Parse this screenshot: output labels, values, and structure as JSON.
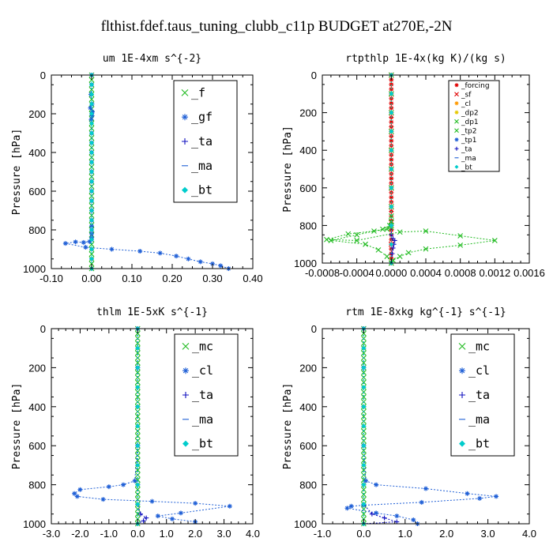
{
  "title": "flthist.fdef.taus_tuning_clubb_c11p  BUDGET at270E,-2N",
  "colors": {
    "red": "#e00000",
    "orange": "#ff9900",
    "yellow": "#e6c800",
    "green": "#22bb22",
    "blue": "#1f5fd6",
    "navy": "#1010c0",
    "cyan": "#00cccc"
  },
  "chart_data": [
    {
      "type": "line",
      "title": "um  1E-4xm s^{-2}",
      "ylabel": "Pressure [hPa]",
      "xlim": [
        -0.1,
        0.4
      ],
      "ylim": [
        0,
        1000
      ],
      "y_reversed": true,
      "xticks": [
        "-0.10",
        "0.00",
        "0.10",
        "0.20",
        "0.30",
        "0.40"
      ],
      "yticks": [
        "0",
        "200",
        "400",
        "600",
        "800",
        "1000"
      ],
      "legend_style": "big",
      "legend_entries": [
        "_f",
        "_gf",
        "_ta",
        "_ma",
        "_bt"
      ],
      "series": [
        {
          "name": "_f",
          "color": "green",
          "marker": "x",
          "x": [
            0,
            0,
            0,
            0,
            0,
            0,
            0,
            0,
            0,
            0,
            0,
            0,
            0,
            0,
            0,
            0,
            0,
            0,
            0,
            0,
            0,
            0,
            0,
            0,
            0,
            0,
            0,
            0,
            0,
            0,
            0,
            0,
            0,
            0,
            0,
            0,
            0,
            0,
            0,
            0,
            0
          ],
          "y": [
            0,
            25,
            50,
            75,
            100,
            125,
            150,
            175,
            200,
            225,
            250,
            275,
            300,
            325,
            350,
            375,
            400,
            425,
            450,
            475,
            500,
            525,
            550,
            575,
            600,
            625,
            650,
            675,
            700,
            725,
            750,
            775,
            800,
            825,
            850,
            875,
            900,
            925,
            950,
            975,
            1000
          ]
        },
        {
          "name": "_gf",
          "color": "blue",
          "marker": "star",
          "x": [
            0,
            0,
            -0.002,
            0.001,
            -0.003,
            0.002,
            0.001,
            -0.001,
            0,
            0,
            0,
            0,
            0,
            0,
            0,
            0,
            0,
            0,
            0,
            0,
            0,
            0,
            0,
            -0.005,
            -0.02,
            -0.04,
            -0.065,
            -0.015,
            0.05,
            0.12,
            0.17,
            0.21,
            0.24,
            0.27,
            0.3,
            0.32,
            0.34
          ],
          "y": [
            0,
            50,
            100,
            150,
            170,
            190,
            210,
            230,
            300,
            350,
            400,
            450,
            500,
            550,
            600,
            650,
            700,
            750,
            780,
            800,
            820,
            840,
            850,
            860,
            865,
            862,
            870,
            890,
            900,
            910,
            920,
            935,
            950,
            965,
            975,
            985,
            1000
          ]
        },
        {
          "name": "_ta",
          "color": "navy",
          "marker": "plus",
          "x": [
            0,
            0,
            0,
            0,
            0,
            0,
            0,
            0,
            0,
            0,
            0,
            0
          ],
          "y": [
            0,
            100,
            200,
            300,
            400,
            500,
            600,
            700,
            800,
            900,
            950,
            1000
          ]
        },
        {
          "name": "_ma",
          "color": "blue",
          "marker": "dash",
          "x": [
            0,
            0,
            0,
            0,
            0,
            0,
            0,
            0,
            0,
            0,
            0,
            0
          ],
          "y": [
            0,
            100,
            200,
            300,
            400,
            500,
            600,
            700,
            800,
            900,
            950,
            1000
          ]
        },
        {
          "name": "_bt",
          "color": "cyan",
          "marker": "diamond",
          "x": [
            0,
            0,
            0,
            0,
            0,
            0,
            0,
            0,
            0,
            0,
            0,
            0,
            0,
            0,
            0,
            0,
            0,
            0,
            0,
            0,
            0
          ],
          "y": [
            0,
            50,
            100,
            150,
            200,
            250,
            300,
            350,
            400,
            450,
            500,
            550,
            600,
            650,
            700,
            750,
            800,
            850,
            900,
            950,
            1000
          ]
        }
      ]
    },
    {
      "type": "line",
      "title": "rtpthlp  1E-4x(kg K)/(kg s)",
      "ylabel": "Pressure [hPa]",
      "xlim": [
        -0.0008,
        0.0016
      ],
      "ylim": [
        0,
        1000
      ],
      "y_reversed": true,
      "xticks": [
        "-0.0008",
        "-0.0004",
        "0.0000",
        "0.0004",
        "0.0008",
        "0.0012",
        "0.0016"
      ],
      "yticks": [
        "0",
        "200",
        "400",
        "600",
        "800",
        "1000"
      ],
      "legend_style": "small",
      "legend_entries": [
        "_forcing",
        "_sf",
        "_cl",
        "_dp2",
        "_dp1",
        "_tp2",
        "_tp1",
        "_ta",
        "_ma",
        "_bt"
      ],
      "series": [
        {
          "name": "_forcing",
          "color": "red",
          "marker": "star",
          "x": [
            0,
            0,
            0,
            0,
            0,
            0,
            0,
            0,
            0,
            0,
            0,
            0,
            0,
            0,
            0,
            0,
            0,
            0,
            0,
            0,
            0,
            0,
            0,
            0,
            0,
            0,
            0,
            0,
            0,
            0,
            0,
            0,
            0,
            0,
            0,
            0,
            0,
            0,
            0,
            0,
            0
          ],
          "y": [
            0,
            25,
            50,
            75,
            100,
            125,
            150,
            175,
            200,
            225,
            250,
            275,
            300,
            325,
            350,
            375,
            400,
            425,
            450,
            475,
            500,
            525,
            550,
            575,
            600,
            625,
            650,
            675,
            700,
            725,
            750,
            775,
            800,
            825,
            850,
            875,
            900,
            925,
            950,
            975,
            1000
          ]
        },
        {
          "name": "_sf",
          "color": "red",
          "marker": "x",
          "x": [
            0,
            0,
            0,
            0,
            0,
            0,
            0,
            0,
            0,
            0,
            0
          ],
          "y": [
            0,
            100,
            200,
            300,
            400,
            500,
            600,
            700,
            800,
            900,
            1000
          ]
        },
        {
          "name": "_dp1",
          "color": "green",
          "marker": "x",
          "x": [
            0,
            0,
            0,
            0,
            0,
            0,
            0,
            0,
            0,
            0,
            0,
            0,
            -5e-05,
            -0.0002,
            -0.0005,
            -0.00075,
            -0.0004,
            0.0001,
            0.0004,
            0.0008,
            0.0012,
            0.0008,
            0.0004,
            0.0002,
            0.0001,
            2e-05,
            0
          ],
          "y": [
            0,
            100,
            200,
            300,
            400,
            500,
            600,
            700,
            750,
            780,
            800,
            810,
            820,
            830,
            845,
            875,
            880,
            835,
            830,
            855,
            880,
            905,
            925,
            945,
            965,
            985,
            1000
          ]
        },
        {
          "name": "_tp2",
          "color": "green",
          "marker": "x",
          "x": [
            0,
            -2e-05,
            -0.0001,
            -0.0004,
            -0.0007,
            -0.0003,
            -0.00015,
            -5e-05,
            0
          ],
          "y": [
            780,
            800,
            820,
            850,
            880,
            900,
            930,
            965,
            1000
          ]
        },
        {
          "name": "_ta",
          "color": "navy",
          "marker": "plus",
          "x": [
            0,
            0,
            2e-05,
            4e-05,
            3e-05,
            2e-05,
            1e-05,
            0
          ],
          "y": [
            800,
            850,
            870,
            880,
            900,
            920,
            950,
            1000
          ]
        },
        {
          "name": "_bt",
          "color": "cyan",
          "marker": "diamond",
          "x": [
            0,
            0,
            0,
            0,
            0,
            0,
            0,
            0,
            0,
            0,
            0
          ],
          "y": [
            0,
            100,
            200,
            300,
            400,
            500,
            600,
            700,
            800,
            900,
            1000
          ]
        }
      ]
    },
    {
      "type": "line",
      "title": "thlm  1E-5xK s^{-1}",
      "ylabel": "Pressure [hPa]",
      "xlim": [
        -3.0,
        4.0
      ],
      "ylim": [
        0,
        1000
      ],
      "y_reversed": true,
      "xticks": [
        "-3.0",
        "-2.0",
        "-1.0",
        "0.0",
        "1.0",
        "2.0",
        "3.0",
        "4.0"
      ],
      "yticks": [
        "0",
        "200",
        "400",
        "600",
        "800",
        "1000"
      ],
      "legend_style": "big",
      "legend_entries": [
        "_mc",
        "_cl",
        "_ta",
        "_ma",
        "_bt"
      ],
      "series": [
        {
          "name": "_mc",
          "color": "green",
          "marker": "x",
          "x": [
            0,
            0,
            0,
            0,
            0,
            0,
            0,
            0,
            0,
            0,
            0,
            0,
            0,
            0,
            0,
            0,
            0,
            0,
            0,
            0,
            0,
            0,
            0,
            0,
            0,
            0,
            0,
            0,
            0,
            0,
            0,
            0,
            0,
            0,
            0,
            0,
            0,
            0,
            0,
            0,
            0
          ],
          "y": [
            0,
            25,
            50,
            75,
            100,
            125,
            150,
            175,
            200,
            225,
            250,
            275,
            300,
            325,
            350,
            375,
            400,
            425,
            450,
            475,
            500,
            525,
            550,
            575,
            600,
            625,
            650,
            675,
            700,
            725,
            750,
            775,
            800,
            825,
            850,
            875,
            900,
            925,
            950,
            975,
            1000
          ]
        },
        {
          "name": "_cl",
          "color": "blue",
          "marker": "star",
          "x": [
            0,
            0,
            0,
            -0.1,
            -0.5,
            -1.0,
            -2.0,
            -2.2,
            -2.1,
            -1.2,
            0.5,
            2.0,
            3.2,
            1.5,
            0.7,
            1.2,
            2.0
          ],
          "y": [
            0,
            200,
            600,
            780,
            800,
            810,
            825,
            845,
            860,
            875,
            885,
            895,
            910,
            945,
            960,
            975,
            990
          ]
        },
        {
          "name": "_ta",
          "color": "navy",
          "marker": "plus",
          "x": [
            0,
            0,
            0,
            0,
            0.1,
            0.3,
            0.2,
            0
          ],
          "y": [
            0,
            400,
            800,
            900,
            950,
            970,
            985,
            1000
          ]
        },
        {
          "name": "_ma",
          "color": "blue",
          "marker": "dash",
          "x": [
            0,
            0,
            0,
            0,
            0,
            0,
            0,
            0,
            0,
            0,
            0
          ],
          "y": [
            0,
            100,
            200,
            300,
            400,
            500,
            600,
            700,
            800,
            900,
            1000
          ]
        },
        {
          "name": "_bt",
          "color": "cyan",
          "marker": "diamond",
          "x": [
            0,
            0,
            0,
            0,
            0,
            0,
            0,
            0,
            0,
            0,
            0
          ],
          "y": [
            0,
            100,
            200,
            300,
            400,
            500,
            600,
            700,
            800,
            900,
            1000
          ]
        }
      ]
    },
    {
      "type": "line",
      "title": "rtm  1E-8xkg kg^{-1} s^{-1}",
      "ylabel": "Pressure [hPa]",
      "xlim": [
        -1.0,
        4.0
      ],
      "ylim": [
        0,
        1000
      ],
      "y_reversed": true,
      "xticks": [
        "-1.0",
        "0.0",
        "1.0",
        "2.0",
        "3.0",
        "4.0"
      ],
      "yticks": [
        "0",
        "200",
        "400",
        "600",
        "800",
        "1000"
      ],
      "legend_style": "big",
      "legend_entries": [
        "_mc",
        "_cl",
        "_ta",
        "_ma",
        "_bt"
      ],
      "series": [
        {
          "name": "_mc",
          "color": "green",
          "marker": "x",
          "x": [
            0,
            0,
            0,
            0,
            0,
            0,
            0,
            0,
            0,
            0,
            0,
            0,
            0,
            0,
            0,
            0,
            0,
            0,
            0,
            0,
            0,
            0,
            0,
            0,
            0,
            0,
            0,
            0,
            0,
            0,
            0,
            0,
            0,
            0,
            0,
            0,
            0,
            0,
            0,
            0,
            0
          ],
          "y": [
            0,
            25,
            50,
            75,
            100,
            125,
            150,
            175,
            200,
            225,
            250,
            275,
            300,
            325,
            350,
            375,
            400,
            425,
            450,
            475,
            500,
            525,
            550,
            575,
            600,
            625,
            650,
            675,
            700,
            725,
            750,
            775,
            800,
            825,
            850,
            875,
            900,
            925,
            950,
            975,
            1000
          ]
        },
        {
          "name": "_cl",
          "color": "blue",
          "marker": "star",
          "x": [
            0,
            0,
            0,
            0.05,
            0.3,
            1.5,
            2.5,
            3.2,
            2.8,
            1.4,
            0,
            -0.3,
            -0.4,
            0.3,
            0.8,
            1.2,
            1.3
          ],
          "y": [
            0,
            200,
            600,
            780,
            800,
            820,
            845,
            860,
            870,
            890,
            905,
            910,
            920,
            945,
            960,
            980,
            1000
          ]
        },
        {
          "name": "_ta",
          "color": "navy",
          "marker": "plus",
          "x": [
            0,
            0,
            0,
            0,
            0.2,
            0.5,
            0.8,
            0
          ],
          "y": [
            0,
            400,
            800,
            900,
            950,
            970,
            990,
            1000
          ]
        },
        {
          "name": "_ma",
          "color": "blue",
          "marker": "dash",
          "x": [
            0,
            0,
            0,
            0,
            0,
            0,
            0,
            0,
            0,
            0,
            0
          ],
          "y": [
            0,
            100,
            200,
            300,
            400,
            500,
            600,
            700,
            800,
            900,
            1000
          ]
        },
        {
          "name": "_bt",
          "color": "cyan",
          "marker": "diamond",
          "x": [
            0,
            0,
            0,
            0,
            0,
            0,
            0,
            0,
            0,
            0,
            0
          ],
          "y": [
            0,
            100,
            200,
            300,
            400,
            500,
            600,
            700,
            800,
            900,
            1000
          ]
        }
      ]
    }
  ]
}
